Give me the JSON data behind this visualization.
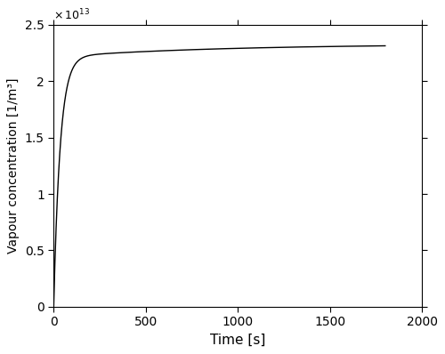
{
  "xlabel": "Time [s]",
  "ylabel": "Vapour concentration [1/m³]",
  "xlim": [
    0,
    2000
  ],
  "ylim": [
    0,
    25000000000000.0
  ],
  "xticks": [
    0,
    500,
    1000,
    1500,
    2000
  ],
  "yticks": [
    0,
    5000000000000.0,
    10000000000000.0,
    15000000000000.0,
    20000000000000.0,
    25000000000000.0
  ],
  "ytick_labels": [
    "0",
    "0.5",
    "1",
    "1.5",
    "2",
    "2.5"
  ],
  "line_color": "#000000",
  "line_width": 1.0,
  "bg_color": "#ffffff",
  "t_max": 1800,
  "c_fast_amp": 22150000000000.0,
  "c_fast_tau": 35,
  "c_slow_amp": 1150000000000.0,
  "c_slow_tau": 900,
  "figsize": [
    5.0,
    3.98
  ],
  "dpi": 100
}
